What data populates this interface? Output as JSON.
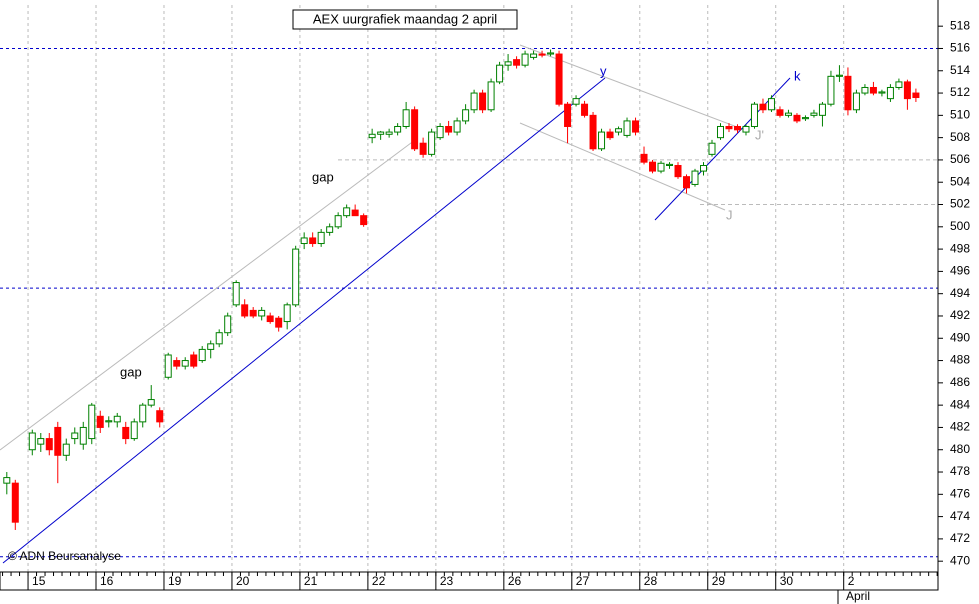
{
  "chart_data": {
    "type": "candlestick",
    "title": "AEX uurgrafiek maandag 2 april",
    "source": "© ADN Beursanalyse",
    "month_label": "April",
    "annotations": [
      "gap",
      "gap",
      "y",
      "k",
      "J",
      "J'"
    ],
    "up_color": "#008000",
    "down_color": "#ff0000",
    "x": [
      -2.5,
      -1.5,
      0.5,
      1.5,
      2.5,
      3.5,
      4.5,
      5.5,
      6.5,
      7.5,
      8.5,
      9.5,
      10.5,
      11.5,
      12.5,
      13.5,
      14.5,
      15.5,
      16.5,
      17.5,
      18.5,
      19.5,
      20.5,
      21.5,
      22.5,
      23.5,
      24.5,
      25.5,
      26.5,
      27.5,
      28.5,
      29.5,
      30.5,
      31.5,
      32.5,
      33.5,
      34.5,
      35.5,
      36.5,
      37.5,
      38.5,
      39.5,
      40.5,
      41.5,
      42.5,
      43.5,
      44.5,
      45.5,
      46.5,
      47.5,
      48.5,
      49.5,
      50.5,
      51.5,
      52.5,
      53.5,
      54.5,
      55.5,
      56.5,
      57.5,
      58.5,
      59.5,
      60.5,
      61.5,
      62.5,
      63.5,
      64.5,
      65.5,
      66.5,
      67.5,
      68.5,
      69.5,
      70.5,
      71.5,
      72.5,
      73.5,
      74.5,
      75.5,
      76.5,
      77.5,
      78.5,
      79.5,
      80.5,
      81.5,
      82.5,
      83.5,
      84.5,
      85.5,
      86.5,
      87.5,
      88.5,
      89.5,
      90.5,
      91.5,
      92.5,
      93.5,
      94.5,
      95.5,
      96.5,
      97.5,
      98.5,
      99.5,
      100.5,
      101.5,
      102.5,
      103.5,
      104.5
    ],
    "open": [
      477,
      477,
      480,
      480.5,
      481,
      482,
      479.5,
      481,
      480.5,
      481,
      483,
      482.5,
      482.5,
      482,
      481,
      482.5,
      484,
      483.5,
      486.5,
      488,
      487.5,
      488.5,
      488,
      489,
      489.5,
      490.5,
      493,
      493,
      492.5,
      492,
      492,
      491.8,
      491.5,
      493,
      498.5,
      499,
      498.5,
      499.5,
      500,
      501,
      501.5,
      501,
      508,
      508.3,
      508.3,
      508.5,
      509,
      510.5,
      507.5,
      506.5,
      508,
      509,
      508.5,
      509.5,
      510.5,
      512,
      510.5,
      513,
      514.5,
      515,
      514.5,
      515.2,
      515.5,
      515.5,
      515.5,
      511,
      511,
      511,
      510,
      507,
      508.5,
      508.5,
      508.2,
      509.5,
      506.5,
      505.8,
      505,
      505.5,
      505.5,
      504.5,
      503.8,
      505,
      506.5,
      508,
      509,
      509,
      508.5,
      509,
      511,
      510.5,
      510.5,
      510,
      510,
      509.7,
      510,
      510,
      511,
      513.5,
      513.5,
      510.5,
      512,
      512.5,
      512,
      511.5,
      512.5,
      513,
      512
    ],
    "high": [
      478,
      477.3,
      481.8,
      481.5,
      481.5,
      482.5,
      481,
      482,
      482.5,
      484.2,
      483.5,
      483,
      483.3,
      482.5,
      482.8,
      484.2,
      485.8,
      483.8,
      488.7,
      488.3,
      488.3,
      488.8,
      489.3,
      489.8,
      490.8,
      492.3,
      495.2,
      493.5,
      492.8,
      492.8,
      492.3,
      492,
      493.2,
      498.3,
      499.5,
      499.5,
      499.8,
      500.3,
      501.3,
      502,
      502,
      501.2,
      508.8,
      508.6,
      508.8,
      509.3,
      511.2,
      510.8,
      508,
      508.8,
      509.3,
      509.5,
      509.8,
      511,
      512.3,
      512.3,
      513.3,
      514.8,
      515.5,
      515.3,
      515.8,
      515.8,
      515.8,
      515.9,
      515.8,
      511.2,
      511.8,
      511.3,
      510.3,
      508.8,
      508.8,
      509,
      509.8,
      509.8,
      507.2,
      506,
      505.9,
      505.8,
      505.8,
      504.7,
      505.2,
      505.8,
      507.8,
      509.3,
      509.3,
      509.2,
      509.2,
      511.2,
      511.5,
      511.8,
      510.8,
      510.5,
      510.2,
      510,
      510.5,
      511.2,
      514,
      514.5,
      514.3,
      512.3,
      512.8,
      513,
      512.3,
      512.8,
      513.3,
      513.2,
      512.4
    ],
    "low": [
      476,
      472.8,
      479.5,
      479.8,
      479.5,
      477,
      479,
      480.5,
      480,
      480.5,
      481.5,
      482,
      482,
      480.5,
      480.8,
      482,
      483.8,
      482,
      486.3,
      487.2,
      487.2,
      487.3,
      487.8,
      488.2,
      489.2,
      490.2,
      492.8,
      491.8,
      491.8,
      491.6,
      491.3,
      490.6,
      490.8,
      492.8,
      498,
      498.2,
      498.2,
      499.2,
      499.8,
      500.8,
      501.2,
      500,
      507.5,
      507.8,
      508,
      508.2,
      508.8,
      506.8,
      506.2,
      506.3,
      507.8,
      508.2,
      508.2,
      509.2,
      510.2,
      510.2,
      510.3,
      512.8,
      514,
      514.2,
      514.3,
      515,
      515.2,
      515.3,
      510.8,
      507.5,
      510.8,
      509.8,
      506.8,
      506.8,
      507.8,
      508.2,
      508,
      508.2,
      505.6,
      504.8,
      504.8,
      505.2,
      504.3,
      503,
      503.6,
      504.6,
      506.3,
      507.8,
      508.5,
      508.4,
      508.2,
      508.8,
      510.2,
      510.3,
      509.8,
      509.8,
      509.3,
      509.5,
      509.8,
      509,
      510.8,
      513,
      510,
      510.2,
      511.8,
      511.8,
      511.7,
      511.2,
      512.3,
      510.5,
      511.2
    ],
    "close": [
      477.5,
      473.5,
      481.5,
      481,
      480,
      479.5,
      480.5,
      481.5,
      482,
      484,
      482,
      482.6,
      483,
      481,
      482.5,
      484,
      484.5,
      482.5,
      488.5,
      487.5,
      488,
      487.5,
      489,
      489.5,
      490.5,
      492,
      495,
      492,
      492,
      492.5,
      491.5,
      491,
      493,
      498,
      499,
      498.5,
      499.5,
      500,
      501,
      501.7,
      501,
      500.2,
      508.3,
      508.5,
      508.5,
      509,
      510.5,
      507,
      506.5,
      508.5,
      509,
      508.5,
      509.5,
      510.5,
      512,
      510.5,
      513,
      514.5,
      514.8,
      514.5,
      515.5,
      515.5,
      515.4,
      515.6,
      511,
      509,
      511.5,
      510,
      507,
      508.5,
      508,
      508.8,
      509.5,
      508.5,
      505.8,
      505,
      505.7,
      505.6,
      504.5,
      503.5,
      505,
      505.5,
      507.5,
      509,
      508.8,
      508.7,
      509,
      511,
      510.5,
      511.5,
      510,
      510.2,
      509.5,
      509.8,
      510.2,
      511,
      513.5,
      513.6,
      510.5,
      512,
      512.5,
      512,
      512.1,
      512.5,
      513,
      511.5,
      511.6
    ],
    "xlim": [
      -3.3,
      107.1
    ],
    "xticks": [
      {
        "value": 0,
        "label": "15"
      },
      {
        "value": 8,
        "label": "16"
      },
      {
        "value": 16,
        "label": "19"
      },
      {
        "value": 24,
        "label": "20"
      },
      {
        "value": 32,
        "label": "21"
      },
      {
        "value": 40,
        "label": "22"
      },
      {
        "value": 48,
        "label": "23"
      },
      {
        "value": 56,
        "label": "26"
      },
      {
        "value": 64,
        "label": "27"
      },
      {
        "value": 72,
        "label": "28"
      },
      {
        "value": 80,
        "label": "29"
      },
      {
        "value": 88,
        "label": "30"
      },
      {
        "value": 96,
        "label": "2"
      }
    ],
    "ylim": [
      469.03,
      519.9
    ],
    "yticks": [
      470,
      472,
      474,
      476,
      478,
      480,
      482,
      484,
      486,
      488,
      490,
      492,
      494,
      496,
      498,
      500,
      502,
      504,
      506,
      508,
      510,
      512,
      514,
      516,
      518
    ],
    "reference_lines": [
      516,
      494.5,
      470.4
    ],
    "support_lines": [
      506,
      502
    ],
    "grid": true
  }
}
